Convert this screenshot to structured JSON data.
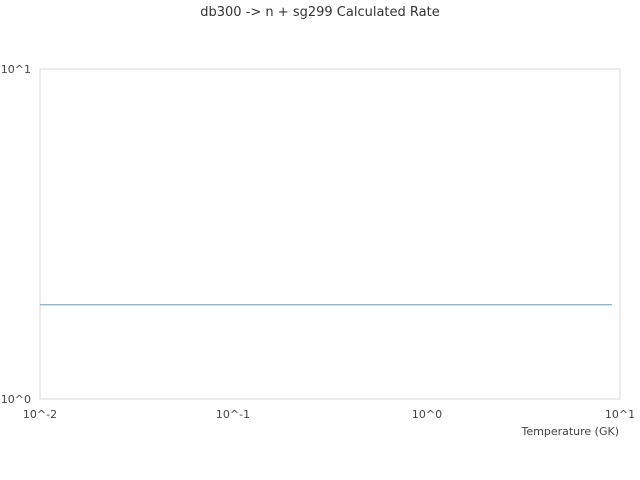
{
  "chart_data": {
    "type": "line",
    "title": "db300 -> n + sg299 Calculated Rate",
    "xlabel": "Temperature (GK)",
    "ylabel": "",
    "x_scale": "log",
    "y_scale": "log",
    "xlim": [
      0.01,
      10
    ],
    "ylim": [
      1,
      10
    ],
    "x_ticks": [
      "10^-2",
      "10^-1",
      "10^0",
      "10^1"
    ],
    "y_ticks": [
      "10^0",
      "10^1"
    ],
    "grid": false,
    "series": [
      {
        "color": "#5b9bd5",
        "x": [
          0.01,
          0.1,
          1,
          9.1
        ],
        "y": [
          1.93,
          1.93,
          1.93,
          1.93
        ]
      }
    ]
  }
}
